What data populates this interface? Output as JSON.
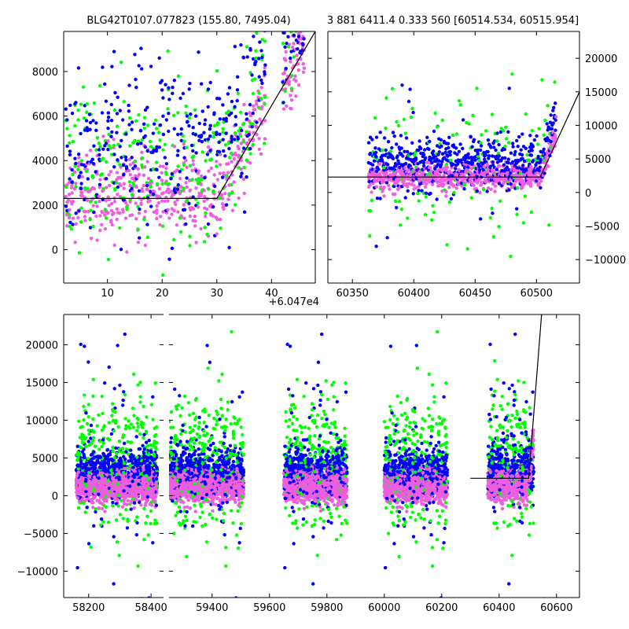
{
  "chart_data": [
    {
      "id": "top-left",
      "type": "scatter",
      "title": "BLG42T0107.077823 (155.80, 7495.04)",
      "x_offset_label": "+6.047e4",
      "xlim": [
        2,
        48
      ],
      "ylim": [
        -1500,
        9800
      ],
      "xticks": [
        10,
        20,
        30,
        40
      ],
      "yticks": [
        0,
        2000,
        4000,
        6000,
        8000
      ],
      "grid": false,
      "model_line": [
        [
          2,
          2300
        ],
        [
          30,
          2300
        ],
        [
          48,
          9800
        ]
      ],
      "colors": {
        "blue": "#0000ff",
        "green": "#00ff00",
        "pink": "#ee5fdf",
        "line": "#000000"
      }
    },
    {
      "id": "top-right",
      "type": "scatter",
      "title": "3 881 6411.4 0.333 560 [60514.534, 60515.954]",
      "xlim": [
        60330,
        60535
      ],
      "ylim": [
        -13500,
        24000
      ],
      "xticks": [
        60350,
        60400,
        60450,
        60500
      ],
      "yticks": [
        -10000,
        -5000,
        0,
        5000,
        10000,
        15000,
        20000
      ],
      "y_axis_side": "right",
      "grid": false,
      "model_line": [
        [
          60330,
          2300
        ],
        [
          60503,
          2300
        ],
        [
          60535,
          15000
        ]
      ],
      "colors": {
        "blue": "#0000ff",
        "green": "#00ff00",
        "pink": "#ee5fdf",
        "line": "#000000"
      }
    },
    {
      "id": "bottom",
      "type": "scatter",
      "title": "",
      "broken_x_axis": true,
      "segments": [
        {
          "xlim": [
            58120,
            58440
          ],
          "xticks": [
            58200,
            58400
          ],
          "clusters": [
            [
              58160,
              58420
            ]
          ]
        },
        {
          "xlim": [
            59250,
            60680
          ],
          "xticks": [
            59400,
            59600,
            59800,
            60000,
            60200,
            60400,
            60600
          ],
          "clusters": [
            [
              59250,
              59510
            ],
            [
              59650,
              59870
            ],
            [
              60000,
              60220
            ],
            [
              60360,
              60520
            ]
          ]
        }
      ],
      "ylim": [
        -13500,
        24000
      ],
      "yticks": [
        -10000,
        -5000,
        0,
        5000,
        10000,
        15000,
        20000
      ],
      "grid": false,
      "model_line": [
        [
          60300,
          2300
        ],
        [
          60503,
          2300
        ],
        [
          60548,
          24000
        ]
      ],
      "colors": {
        "blue": "#0000ff",
        "green": "#00ff00",
        "pink": "#ee5fdf",
        "line": "#000000"
      }
    }
  ]
}
